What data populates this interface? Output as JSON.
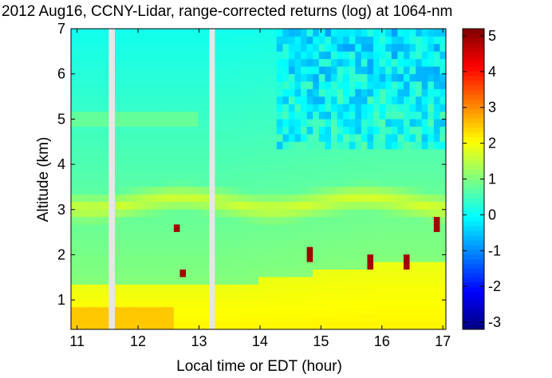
{
  "chart_data": {
    "type": "heatmap",
    "title": "2012 Aug16, CCNY-Lidar, range-corrected returns (log) at 1064-nm",
    "xlabel": "Local time or EDT (hour)",
    "ylabel": "Altitude (km)",
    "xlim": [
      10.9,
      17.05
    ],
    "ylim": [
      0.35,
      7.0
    ],
    "xticks": [
      "11",
      "12",
      "13",
      "14",
      "15",
      "16",
      "17"
    ],
    "xtick_values": [
      11,
      12,
      13,
      14,
      15,
      16,
      17
    ],
    "yticks": [
      "1",
      "2",
      "3",
      "4",
      "5",
      "6",
      "7"
    ],
    "ytick_values": [
      1,
      2,
      3,
      4,
      5,
      6,
      7
    ],
    "colorbar": {
      "colormap": "jet",
      "range": [
        -3.2,
        5.2
      ],
      "ticks": [
        "-3",
        "-2",
        "-1",
        "0",
        "1",
        "2",
        "3",
        "4",
        "5"
      ],
      "tick_values": [
        -3,
        -2,
        -1,
        0,
        1,
        2,
        3,
        4,
        5
      ]
    },
    "data_gaps_hours": [
      [
        11.52,
        11.62
      ],
      [
        13.17,
        13.26
      ]
    ],
    "features": {
      "elevated_aerosol_layer_km": [
        3.05,
        3.6
      ],
      "boundary_layer_top_km": [
        1.2,
        2.0
      ],
      "cloud_base_events_km": [
        [
          12.6,
          2.6
        ],
        [
          12.75,
          1.6
        ],
        [
          14.85,
          2.0
        ],
        [
          15.8,
          1.9
        ],
        [
          16.4,
          1.9
        ],
        [
          16.9,
          2.7
        ]
      ],
      "noisy_upper_region_after_hour": 14.3
    }
  }
}
